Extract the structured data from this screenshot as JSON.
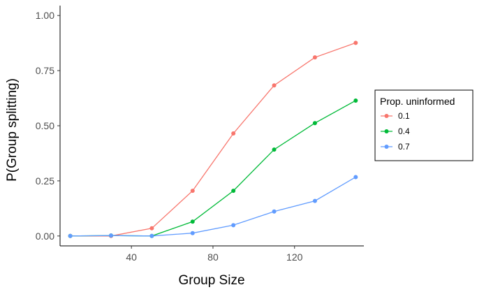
{
  "chart_data": {
    "type": "line",
    "xlabel": "Group Size",
    "ylabel": "P(Group splitting)",
    "xlim": [
      5,
      154
    ],
    "ylim": [
      -0.045,
      1.045
    ],
    "x_ticks": [
      40,
      80,
      120
    ],
    "y_ticks": [
      0.0,
      0.25,
      0.5,
      0.75,
      1.0
    ],
    "x_tick_labels": [
      "40",
      "80",
      "120"
    ],
    "y_tick_labels": [
      "0.00",
      "0.25",
      "0.50",
      "0.75",
      "1.00"
    ],
    "x": [
      10,
      30,
      50,
      70,
      90,
      110,
      130,
      150
    ],
    "grid": false,
    "legend": {
      "title": "Prop. uninformed",
      "placement": "right"
    },
    "series": [
      {
        "name": "0.1",
        "color": "#F8766D",
        "values": [
          0.0,
          0.0,
          0.035,
          0.205,
          0.465,
          0.683,
          0.81,
          0.876
        ]
      },
      {
        "name": "0.4",
        "color": "#00BA38",
        "values": [
          0.0,
          0.002,
          0.0,
          0.065,
          0.205,
          0.392,
          0.512,
          0.614
        ]
      },
      {
        "name": "0.7",
        "color": "#619CFF",
        "values": [
          0.0,
          0.002,
          0.0,
          0.013,
          0.049,
          0.111,
          0.159,
          0.267
        ]
      }
    ]
  }
}
